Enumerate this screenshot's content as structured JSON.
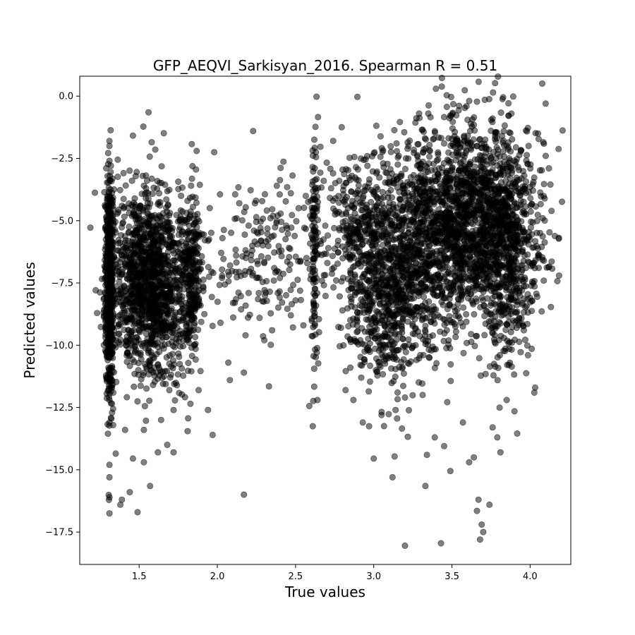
{
  "chart_data": {
    "type": "scatter",
    "title": "GFP_AEQVI_Sarkisyan_2016. Spearman R = 0.51",
    "xlabel": "True values",
    "ylabel": "Predicted values",
    "xlim": [
      1.12,
      4.26
    ],
    "ylim": [
      -18.8,
      0.8
    ],
    "xticks": [
      1.5,
      2.0,
      2.5,
      3.0,
      3.5,
      4.0
    ],
    "xtick_labels": [
      "1.5",
      "2.0",
      "2.5",
      "3.0",
      "3.5",
      "4.0"
    ],
    "yticks": [
      0.0,
      -2.5,
      -5.0,
      -7.5,
      -10.0,
      -12.5,
      -15.0,
      -17.5
    ],
    "ytick_labels": [
      "0.0",
      "−2.5",
      "−5.0",
      "−7.5",
      "−10.0",
      "−12.5",
      "−15.0",
      "−17.5"
    ],
    "grid": false,
    "marker_color": "#000000",
    "marker_opacity": 0.5,
    "points": [
      [
        1.31,
        -16.75
      ],
      [
        1.31,
        -16.1
      ],
      [
        1.31,
        -15.3
      ],
      [
        1.31,
        -14.8
      ],
      [
        1.31,
        -13.1
      ],
      [
        1.31,
        -12.2
      ],
      [
        1.31,
        -11.0
      ],
      [
        1.31,
        -2.6
      ],
      [
        1.31,
        -2.0
      ],
      [
        1.31,
        -1.8
      ],
      [
        1.56,
        -0.65
      ],
      [
        1.58,
        -1.85
      ],
      [
        1.98,
        -2.25
      ],
      [
        2.17,
        -16.0
      ],
      [
        2.17,
        -11.1
      ],
      [
        2.33,
        -11.65
      ],
      [
        2.62,
        -1.75
      ],
      [
        2.63,
        -2.25
      ],
      [
        2.61,
        -13.25
      ],
      [
        2.64,
        -12.2
      ],
      [
        3.29,
        -0.7
      ],
      [
        3.71,
        -0.15
      ],
      [
        3.2,
        -18.05
      ],
      [
        3.43,
        -17.95
      ],
      [
        3.68,
        -17.8
      ],
      [
        3.7,
        -17.5
      ],
      [
        3.69,
        -17.2
      ],
      [
        3.74,
        -16.4
      ],
      [
        3.67,
        -16.2
      ],
      [
        3.66,
        -16.65
      ],
      [
        3.9,
        -12.65
      ],
      [
        2.97,
        -13.25
      ],
      [
        3.0,
        -14.55
      ],
      [
        3.12,
        -15.3
      ],
      [
        3.33,
        -15.65
      ],
      [
        3.49,
        -15.05
      ],
      [
        3.61,
        -14.7
      ],
      [
        3.45,
        -14.05
      ],
      [
        4.05,
        -1.5
      ],
      [
        3.88,
        -0.7
      ],
      [
        1.39,
        -16.2
      ],
      [
        1.38,
        -16.4
      ],
      [
        1.44,
        -15.9
      ],
      [
        1.49,
        -16.7
      ],
      [
        1.57,
        -15.65
      ],
      [
        1.53,
        -14.7
      ],
      [
        1.62,
        -14.3
      ],
      [
        1.72,
        -14.3
      ],
      [
        1.81,
        -13.45
      ],
      [
        1.97,
        -13.6
      ],
      [
        1.46,
        -14.55
      ],
      [
        1.35,
        -14.35
      ],
      [
        1.41,
        -13.4
      ],
      [
        1.68,
        -14.0
      ],
      [
        2.07,
        -10.7
      ],
      [
        2.18,
        -9.6
      ],
      [
        2.3,
        -9.8
      ],
      [
        2.08,
        -11.4
      ],
      [
        1.94,
        -12.6
      ],
      [
        1.88,
        -11.8
      ],
      [
        2.14,
        -4.3
      ],
      [
        2.24,
        -4.3
      ],
      [
        2.38,
        -3.6
      ],
      [
        2.47,
        -3.9
      ],
      [
        2.52,
        -4.5
      ],
      [
        2.44,
        -5.2
      ],
      [
        2.36,
        -5.6
      ],
      [
        2.3,
        -6.7
      ],
      [
        2.4,
        -7.3
      ],
      [
        2.5,
        -8.2
      ],
      [
        2.55,
        -9.2
      ],
      [
        2.47,
        -8.8
      ],
      [
        2.35,
        -9.4
      ],
      [
        2.27,
        -8.9
      ],
      [
        2.2,
        -7.9
      ],
      [
        2.1,
        -8.3
      ],
      [
        2.02,
        -9.1
      ],
      [
        2.03,
        -7.3
      ],
      [
        2.12,
        -6.4
      ],
      [
        2.2,
        -5.2
      ],
      [
        2.28,
        -5.8
      ],
      [
        2.34,
        -4.9
      ],
      [
        2.41,
        -6.2
      ],
      [
        2.57,
        -6.5
      ],
      [
        2.69,
        -5.2
      ],
      [
        2.74,
        -4.2
      ],
      [
        2.71,
        -6.1
      ],
      [
        2.76,
        -7.4
      ],
      [
        2.8,
        -8.6
      ],
      [
        2.79,
        -9.3
      ],
      [
        2.85,
        -10.9
      ],
      [
        2.87,
        -12.2
      ],
      [
        2.93,
        -13.1
      ],
      [
        2.82,
        -11.8
      ],
      [
        2.92,
        -11.3
      ],
      [
        2.96,
        -10.2
      ],
      [
        3.14,
        -12.6
      ],
      [
        3.2,
        -12.1
      ],
      [
        3.05,
        -12.8
      ],
      [
        3.34,
        -14.4
      ],
      [
        3.39,
        -13.7
      ],
      [
        3.57,
        -13.1
      ],
      [
        3.64,
        -14.5
      ],
      [
        3.76,
        -13.3
      ],
      [
        3.81,
        -14.3
      ],
      [
        3.79,
        -13.7
      ],
      [
        3.85,
        -12.2
      ],
      [
        3.96,
        -9.4
      ],
      [
        4.0,
        -8.1
      ],
      [
        4.03,
        -6.9
      ],
      [
        4.08,
        -4.9
      ],
      [
        4.12,
        -2.9
      ],
      [
        4.1,
        -2.4
      ],
      [
        3.99,
        -2.0
      ],
      [
        3.82,
        -1.6
      ],
      [
        3.76,
        -0.9
      ],
      [
        3.6,
        -0.95
      ],
      [
        3.54,
        -1.8
      ],
      [
        3.45,
        -1.9
      ],
      [
        3.36,
        -2.2
      ],
      [
        3.16,
        -2.4
      ],
      [
        3.06,
        -2.7
      ],
      [
        2.96,
        -2.8
      ],
      [
        2.86,
        -3.2
      ],
      [
        2.78,
        -3.4
      ],
      [
        2.74,
        -3.1
      ],
      [
        2.68,
        -3.4
      ],
      [
        1.72,
        -12.6
      ],
      [
        1.64,
        -13.0
      ],
      [
        1.53,
        -13.4
      ]
    ],
    "dense_regions": [
      {
        "x": 1.57,
        "y": -7.5,
        "sx": 0.12,
        "sy": 1.9,
        "n": 1400
      },
      {
        "x": 1.31,
        "y": -7.6,
        "sx": 0.012,
        "sy": 2.1,
        "n": 700
      },
      {
        "x": 1.84,
        "y": -7.2,
        "sx": 0.035,
        "sy": 1.5,
        "n": 250
      },
      {
        "x": 3.62,
        "y": -4.9,
        "sx": 0.2,
        "sy": 1.9,
        "n": 1600
      },
      {
        "x": 3.2,
        "y": -6.6,
        "sx": 0.17,
        "sy": 2.2,
        "n": 900
      },
      {
        "x": 3.05,
        "y": -8.5,
        "sx": 0.12,
        "sy": 1.4,
        "n": 300
      },
      {
        "x": 3.85,
        "y": -6.5,
        "sx": 0.1,
        "sy": 2.2,
        "n": 500
      },
      {
        "x": 2.9,
        "y": -5.2,
        "sx": 0.12,
        "sy": 1.3,
        "n": 250
      },
      {
        "x": 2.62,
        "y": -6.2,
        "sx": 0.012,
        "sy": 2.4,
        "n": 120
      },
      {
        "x": 2.25,
        "y": -6.4,
        "sx": 0.2,
        "sy": 1.6,
        "n": 180
      }
    ]
  }
}
